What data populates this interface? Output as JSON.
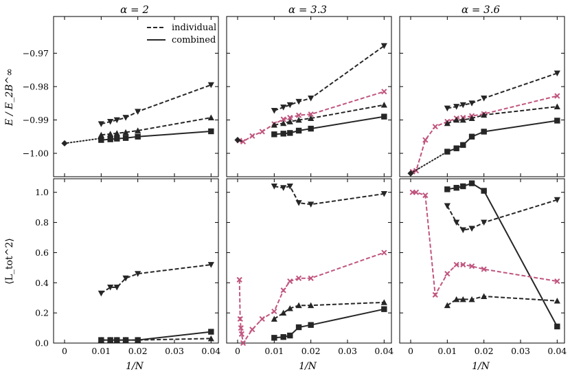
{
  "chart_data": {
    "type": "line",
    "layout": "2 rows x 3 columns, shared x axis, rows share y axis",
    "colors": {
      "black": "#262626",
      "pink": "#c0557e"
    },
    "xlabel": "1/N",
    "xlim": [
      -0.003,
      0.042
    ],
    "xticks": [
      0,
      0.01,
      0.02,
      0.03,
      0.04
    ],
    "xtick_labels": [
      "0",
      "0.01",
      "0.02",
      "0.03",
      "0.04"
    ],
    "row_ylabels": [
      "E / E_2B^∞",
      "⟨L_tot^2⟩"
    ],
    "row_ylims": [
      [
        -1.007,
        -0.959
      ],
      [
        0,
        1.09
      ]
    ],
    "row_yticks": [
      [
        -1.0,
        -0.99,
        -0.98,
        -0.97
      ],
      [
        0,
        0.2,
        0.4,
        0.6,
        0.8,
        1.0
      ]
    ],
    "row_ytick_labels": [
      [
        "−1.00",
        "−0.99",
        "−0.98",
        "−0.97"
      ],
      [
        "0.0",
        "0.2",
        "0.4",
        "0.6",
        "0.8",
        "1.0"
      ]
    ],
    "legend": {
      "location": "top-right of first panel",
      "entries": [
        {
          "label": "individual",
          "style": "dashed"
        },
        {
          "label": "combined",
          "style": "solid"
        }
      ]
    },
    "panels": [
      {
        "title": "α = 2",
        "energy": [
          {
            "name": "individual ▼",
            "marker": "triangle-down",
            "color": "#262626",
            "style": "dashed",
            "x": [
              0.01,
              0.0125,
              0.0143,
              0.0167,
              0.02,
              0.04
            ],
            "y": [
              -0.9912,
              -0.9905,
              -0.99,
              -0.9893,
              -0.9875,
              -0.9795
            ]
          },
          {
            "name": "individual ▲",
            "marker": "triangle-up",
            "color": "#262626",
            "style": "dashed",
            "x": [
              0.01,
              0.0125,
              0.0143,
              0.0167,
              0.02,
              0.04
            ],
            "y": [
              -0.9945,
              -0.9942,
              -0.994,
              -0.9937,
              -0.9932,
              -0.9893
            ]
          },
          {
            "name": "combined ■",
            "marker": "square",
            "color": "#262626",
            "style": "solid",
            "x": [
              0.01,
              0.0125,
              0.0143,
              0.0167,
              0.02,
              0.04
            ],
            "y": [
              -0.996,
              -0.9958,
              -0.9956,
              -0.9954,
              -0.995,
              -0.9934
            ]
          },
          {
            "name": "extrapolation",
            "marker": "diamond",
            "color": "#262626",
            "style": "dotted",
            "x": [
              0,
              0.01
            ],
            "y": [
              -0.997,
              -0.9955
            ]
          }
        ],
        "L2": [
          {
            "name": "individual ▼",
            "marker": "triangle-down",
            "color": "#262626",
            "style": "dashed",
            "x": [
              0.01,
              0.0125,
              0.0143,
              0.0167,
              0.02,
              0.04
            ],
            "y": [
              0.33,
              0.37,
              0.37,
              0.43,
              0.46,
              0.52
            ]
          },
          {
            "name": "individual ▲",
            "marker": "triangle-up",
            "color": "#262626",
            "style": "dashed",
            "x": [
              0.01,
              0.0125,
              0.0143,
              0.0167,
              0.02,
              0.04
            ],
            "y": [
              0.02,
              0.02,
              0.02,
              0.02,
              0.02,
              0.03
            ]
          },
          {
            "name": "combined ■",
            "marker": "square",
            "color": "#262626",
            "style": "solid",
            "x": [
              0.01,
              0.0125,
              0.0143,
              0.0167,
              0.02,
              0.04
            ],
            "y": [
              0.02,
              0.02,
              0.02,
              0.02,
              0.02,
              0.075
            ]
          }
        ]
      },
      {
        "title": "α = 3.3",
        "energy": [
          {
            "name": "individual ▼",
            "marker": "triangle-down",
            "color": "#262626",
            "style": "dashed",
            "x": [
              0.01,
              0.0125,
              0.0143,
              0.0167,
              0.02,
              0.04
            ],
            "y": [
              -0.9872,
              -0.9862,
              -0.9855,
              -0.9845,
              -0.9835,
              -0.9678
            ]
          },
          {
            "name": "individual ×",
            "marker": "x",
            "color": "#c0557e",
            "style": "dashed",
            "x": [
              0.0005,
              0.0015,
              0.004,
              0.0067,
              0.01,
              0.0125,
              0.0143,
              0.0167,
              0.02,
              0.04
            ],
            "y": [
              -0.9962,
              -0.9965,
              -0.9948,
              -0.9935,
              -0.9912,
              -0.9898,
              -0.9893,
              -0.9886,
              -0.9883,
              -0.9815
            ]
          },
          {
            "name": "individual ▲",
            "marker": "triangle-up",
            "color": "#262626",
            "style": "dashed",
            "x": [
              0.01,
              0.0125,
              0.0143,
              0.0167,
              0.02,
              0.04
            ],
            "y": [
              -0.9915,
              -0.991,
              -0.9905,
              -0.99,
              -0.9895,
              -0.9855
            ]
          },
          {
            "name": "combined ■",
            "marker": "square",
            "color": "#262626",
            "style": "solid",
            "x": [
              0.01,
              0.0125,
              0.0143,
              0.0167,
              0.02,
              0.04
            ],
            "y": [
              -0.9943,
              -0.9941,
              -0.9939,
              -0.9932,
              -0.9926,
              -0.989
            ]
          },
          {
            "name": "extrapolation",
            "marker": "diamond",
            "color": "#262626",
            "style": "dotted",
            "x": [
              0,
              0.0015
            ],
            "y": [
              -0.996,
              -0.9965
            ]
          }
        ],
        "L2": [
          {
            "name": "individual ▼",
            "marker": "triangle-down",
            "color": "#262626",
            "style": "dashed",
            "x": [
              0.01,
              0.0125,
              0.0143,
              0.0167,
              0.02,
              0.04
            ],
            "y": [
              1.04,
              1.03,
              1.04,
              0.93,
              0.92,
              0.99
            ]
          },
          {
            "name": "individual ×",
            "marker": "x",
            "color": "#c0557e",
            "style": "dashed",
            "x": [
              0.0005,
              0.0007,
              0.0009,
              0.0011,
              0.0015,
              0.004,
              0.0067,
              0.01,
              0.0125,
              0.0143,
              0.0167,
              0.02,
              0.04
            ],
            "y": [
              0.42,
              0.16,
              0.1,
              0.06,
              0.0,
              0.09,
              0.16,
              0.21,
              0.35,
              0.41,
              0.43,
              0.43,
              0.6
            ]
          },
          {
            "name": "individual ▲",
            "marker": "triangle-up",
            "color": "#262626",
            "style": "dashed",
            "x": [
              0.01,
              0.0125,
              0.0143,
              0.0167,
              0.02,
              0.04
            ],
            "y": [
              0.16,
              0.2,
              0.23,
              0.25,
              0.25,
              0.27
            ]
          },
          {
            "name": "combined ■",
            "marker": "square",
            "color": "#262626",
            "style": "solid",
            "x": [
              0.01,
              0.0125,
              0.0143,
              0.0167,
              0.02,
              0.04
            ],
            "y": [
              0.035,
              0.04,
              0.05,
              0.105,
              0.12,
              0.225
            ]
          }
        ]
      },
      {
        "title": "α = 3.6",
        "energy": [
          {
            "name": "individual ▼",
            "marker": "triangle-down",
            "color": "#262626",
            "style": "dashed",
            "x": [
              0.01,
              0.0125,
              0.0143,
              0.0167,
              0.02,
              0.04
            ],
            "y": [
              -0.9865,
              -0.986,
              -0.9855,
              -0.985,
              -0.9835,
              -0.976
            ]
          },
          {
            "name": "individual ×",
            "marker": "x",
            "color": "#c0557e",
            "style": "dashed",
            "x": [
              0.0005,
              0.0015,
              0.004,
              0.0067,
              0.01,
              0.0125,
              0.0143,
              0.0167,
              0.02,
              0.04
            ],
            "y": [
              -1.0055,
              -1.0052,
              -0.996,
              -0.992,
              -0.9905,
              -0.9895,
              -0.9893,
              -0.9888,
              -0.9882,
              -0.9828
            ]
          },
          {
            "name": "individual ▲",
            "marker": "triangle-up",
            "color": "#262626",
            "style": "dashed",
            "x": [
              0.01,
              0.0125,
              0.0143,
              0.0167,
              0.02,
              0.04
            ],
            "y": [
              -0.991,
              -0.99,
              -0.99,
              -0.9895,
              -0.9885,
              -0.986
            ]
          },
          {
            "name": "combined ■",
            "marker": "square",
            "color": "#262626",
            "style": "solid",
            "x": [
              0.01,
              0.0125,
              0.0143,
              0.0167,
              0.02,
              0.04
            ],
            "y": [
              -0.9995,
              -0.9985,
              -0.9975,
              -0.995,
              -0.9935,
              -0.9902
            ]
          },
          {
            "name": "extrapolation",
            "marker": "diamond",
            "color": "#262626",
            "style": "dotted",
            "x": [
              0,
              0.01
            ],
            "y": [
              -1.006,
              -0.9995
            ]
          }
        ],
        "L2": [
          {
            "name": "individual ■ (upper)",
            "marker": "square",
            "color": "#262626",
            "style": "solid",
            "x": [
              0.01,
              0.0125,
              0.0143,
              0.0167,
              0.02,
              0.04
            ],
            "y": [
              1.02,
              1.03,
              1.04,
              1.06,
              1.01,
              0.11
            ]
          },
          {
            "name": "individual ▼",
            "marker": "triangle-down",
            "color": "#262626",
            "style": "dashed",
            "x": [
              0.01,
              0.0125,
              0.0143,
              0.0167,
              0.02,
              0.04
            ],
            "y": [
              0.91,
              0.8,
              0.75,
              0.76,
              0.8,
              0.95
            ]
          },
          {
            "name": "individual ×",
            "marker": "x",
            "color": "#c0557e",
            "style": "dashed",
            "x": [
              0.0005,
              0.0015,
              0.004,
              0.0067,
              0.01,
              0.0125,
              0.0143,
              0.0167,
              0.02,
              0.04
            ],
            "y": [
              1.0,
              1.0,
              0.98,
              0.32,
              0.46,
              0.52,
              0.52,
              0.51,
              0.49,
              0.41
            ]
          },
          {
            "name": "individual ▲",
            "marker": "triangle-up",
            "color": "#262626",
            "style": "dashed",
            "x": [
              0.01,
              0.0125,
              0.0143,
              0.0167,
              0.02,
              0.04
            ],
            "y": [
              0.25,
              0.29,
              0.29,
              0.29,
              0.31,
              0.28
            ]
          }
        ]
      }
    ]
  }
}
